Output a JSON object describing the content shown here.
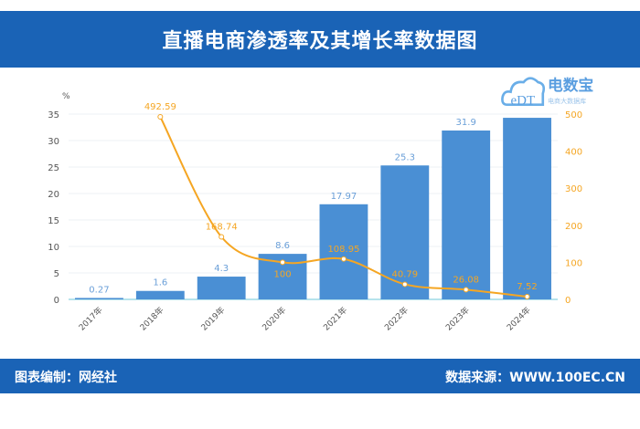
{
  "header": {
    "title": "直播电商渗透率及其增长率数据图"
  },
  "footer": {
    "left": "图表编制：网经社",
    "right": "数据来源：WWW.100EC.CN"
  },
  "logo": {
    "text": "电数宝",
    "letters": "eDT",
    "sub": "电商大数据库"
  },
  "colors": {
    "bar": "#4a8fd4",
    "line": "#f5a623",
    "header": "#1a63b6",
    "bar_label": "#6a9fd8",
    "line_label": "#f5a623"
  },
  "chart_data": {
    "type": "bar+line",
    "categories": [
      "2017年",
      "2018年",
      "2019年",
      "2020年",
      "2021年",
      "2022年",
      "2023年",
      "2024年"
    ],
    "series": [
      {
        "type": "bar",
        "axis": "left",
        "values": [
          0.27,
          1.6,
          4.3,
          8.6,
          17.97,
          25.3,
          31.9,
          34.3
        ],
        "labels": [
          "0.27",
          "1.6",
          "4.3",
          "8.6",
          "17.97",
          "25.3",
          "31.9",
          ""
        ]
      },
      {
        "type": "line",
        "axis": "right",
        "values": [
          null,
          492.59,
          168.74,
          100,
          108.95,
          40.79,
          26.08,
          7.52
        ],
        "labels": [
          "",
          "492.59",
          "168.74",
          "100",
          "108.95",
          "40.79",
          "26.08",
          "7.52"
        ]
      }
    ],
    "y_left": {
      "unit": "%",
      "range": [
        0,
        35
      ],
      "ticks": [
        "0",
        "5",
        "10",
        "15",
        "20",
        "25",
        "30",
        "35"
      ]
    },
    "y_right": {
      "range": [
        0,
        500
      ],
      "ticks": [
        "0",
        "100",
        "200",
        "300",
        "400",
        "500"
      ]
    },
    "grid": true
  }
}
